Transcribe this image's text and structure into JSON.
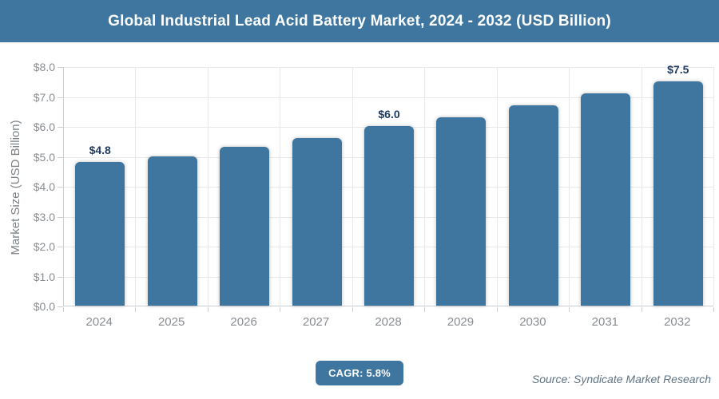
{
  "header": {
    "title": "Global Industrial Lead Acid Battery Market, 2024 - 2032 (USD Billion)"
  },
  "chart_data": {
    "type": "bar",
    "title": "Global Industrial Lead Acid Battery Market, 2024 - 2032 (USD Billion)",
    "categories": [
      "2024",
      "2025",
      "2026",
      "2027",
      "2028",
      "2029",
      "2030",
      "2031",
      "2032"
    ],
    "values": [
      4.8,
      5.0,
      5.3,
      5.6,
      6.0,
      6.3,
      6.7,
      7.1,
      7.5
    ],
    "bar_labels": [
      "$4.8",
      "",
      "",
      "",
      "$6.0",
      "",
      "",
      "",
      "$7.5"
    ],
    "xlabel": "",
    "ylabel": "Market Size (USD Billion)",
    "ylim": [
      0,
      8
    ],
    "ytick_step": 1,
    "ytick_labels": [
      "$0.0",
      "$1.0",
      "$2.0",
      "$3.0",
      "$4.0",
      "$5.0",
      "$6.0",
      "$7.0",
      "$8.0"
    ],
    "grid": true,
    "legend": "none",
    "cagr": "5.8%",
    "colors": {
      "bar": "#3e76a0",
      "header_bg": "#3e76a0",
      "bar_label": "#1e3a5f",
      "gridline": "#e9e9e9",
      "axis": "#c9ced3",
      "tick_text": "#898d92",
      "axis_title": "#7d8287",
      "source_text": "#5f7485"
    }
  },
  "footer": {
    "cagr_label": "CAGR: 5.8%",
    "source": "Source: Syndicate Market Research"
  }
}
